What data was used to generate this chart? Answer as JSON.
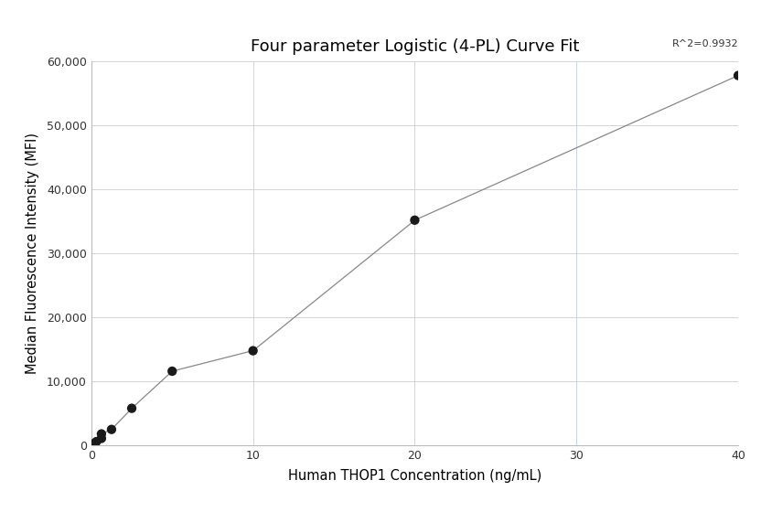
{
  "title": "Four parameter Logistic (4-PL) Curve Fit",
  "xlabel": "Human THOP1 Concentration (ng/mL)",
  "ylabel": "Median Fluorescence Intensity (MFI)",
  "scatter_x": [
    0.156,
    0.313,
    0.625,
    0.625,
    1.25,
    2.5,
    5.0,
    10.0,
    20.0,
    40.0
  ],
  "scatter_y": [
    300,
    600,
    1100,
    1800,
    2500,
    5800,
    11600,
    14800,
    35200,
    57800
  ],
  "r_squared": "R^2=0.9932",
  "xlim": [
    0,
    40
  ],
  "ylim": [
    0,
    60000
  ],
  "yticks": [
    0,
    10000,
    20000,
    30000,
    40000,
    50000,
    60000
  ],
  "ytick_labels": [
    "0",
    "10,000",
    "20,000",
    "30,000",
    "40,000",
    "50,000",
    "60,000"
  ],
  "xticks": [
    0,
    10,
    20,
    30,
    40
  ],
  "background_color": "#ffffff",
  "grid_color": "#c8d4e8",
  "dot_color": "#1a1a1a",
  "line_color": "#888888",
  "dot_size": 55,
  "title_fontsize": 13,
  "label_fontsize": 10.5,
  "tick_fontsize": 9
}
